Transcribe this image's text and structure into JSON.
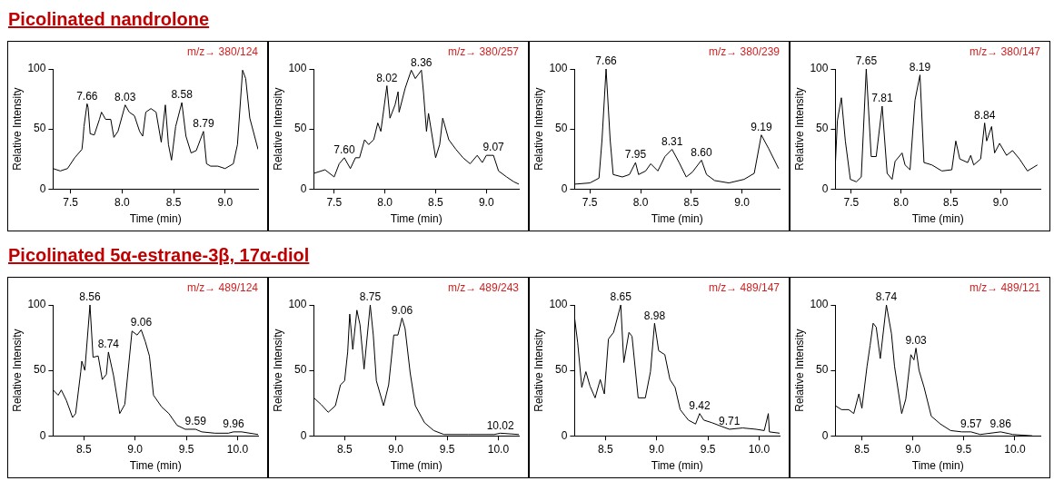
{
  "chart_data": [
    {
      "type": "line",
      "title": "Picolinated nandrolone",
      "xlabel": "Time (min)",
      "ylabel": "Relative Intensity",
      "xlim": [
        7.33,
        9.32
      ],
      "ylim": [
        0,
        100
      ],
      "xticks": [
        7.5,
        {
          "value": 8,
          "label": "8.0"
        },
        8.5,
        {
          "value": 9,
          "label": "9.0"
        }
      ],
      "yticks": [
        0,
        50,
        100
      ],
      "x": [
        7.33,
        7.4,
        7.47,
        7.54,
        7.61,
        7.62,
        7.63,
        7.66,
        7.67,
        7.69,
        7.73,
        7.78,
        7.8,
        7.84,
        7.89,
        7.92,
        7.96,
        8.03,
        8.07,
        8.12,
        8.17,
        8.2,
        8.23,
        8.28,
        8.33,
        8.38,
        8.42,
        8.45,
        8.48,
        8.52,
        8.58,
        8.62,
        8.67,
        8.72,
        8.79,
        8.82,
        8.86,
        8.93,
        9.0,
        9.08,
        9.12,
        9.17,
        9.2,
        9.24,
        9.32
      ],
      "series": [
        {
          "color": "#000000",
          "values": [
            17,
            15,
            17,
            26,
            33,
            41,
            52,
            71,
            68,
            46,
            45,
            58,
            64,
            58,
            58,
            43,
            48,
            70,
            64,
            61,
            48,
            44,
            64,
            67,
            64,
            39,
            70,
            37,
            24,
            52,
            72,
            44,
            30,
            32,
            48,
            21,
            19,
            19,
            17,
            21,
            37,
            99,
            92,
            59,
            33
          ]
        }
      ],
      "annotations": [
        "m/z→ 380/124",
        {
          "text": "7.66",
          "x": 7.66,
          "y": 71
        },
        {
          "text": "8.03",
          "x": 8.03,
          "y": 70
        },
        {
          "text": "8.58",
          "x": 8.58,
          "y": 72
        },
        {
          "text": "8.79",
          "x": 8.79,
          "y": 48
        }
      ]
    },
    {
      "type": "line",
      "xlabel": "Time (min)",
      "ylabel": "Relative Intensity",
      "xlim": [
        7.3,
        9.32
      ],
      "ylim": [
        0,
        100
      ],
      "xticks": [
        7.5,
        {
          "value": 8,
          "label": "8.0"
        },
        8.5,
        {
          "value": 9,
          "label": "9.0"
        }
      ],
      "yticks": [
        0,
        50,
        100
      ],
      "x": [
        7.3,
        7.41,
        7.5,
        7.55,
        7.6,
        7.66,
        7.71,
        7.75,
        7.8,
        7.84,
        7.89,
        7.93,
        7.96,
        8.02,
        8.05,
        8.1,
        8.13,
        8.14,
        8.2,
        8.26,
        8.3,
        8.36,
        8.38,
        8.41,
        8.43,
        8.5,
        8.54,
        8.57,
        8.63,
        8.7,
        8.77,
        8.84,
        8.91,
        8.96,
        9.0,
        9.07,
        9.12,
        9.2,
        9.27,
        9.32
      ],
      "series": [
        {
          "color": "#000000",
          "values": [
            13,
            16,
            10,
            21,
            26,
            17,
            26,
            26,
            41,
            37,
            41,
            55,
            48,
            86,
            59,
            70,
            81,
            64,
            84,
            99,
            92,
            99,
            81,
            48,
            63,
            26,
            37,
            59,
            41,
            33,
            26,
            21,
            28,
            22,
            28,
            28,
            15,
            10,
            6,
            4
          ]
        }
      ],
      "annotations": [
        "m/z→ 380/257",
        {
          "text": "7.60",
          "x": 7.6,
          "y": 26
        },
        {
          "text": "8.02",
          "x": 8.02,
          "y": 86
        },
        {
          "text": "8.36",
          "x": 8.36,
          "y": 99
        },
        {
          "text": "9.07",
          "x": 9.07,
          "y": 28
        }
      ]
    },
    {
      "type": "line",
      "xlabel": "Time (min)",
      "ylabel": "Relative Intensity",
      "xlim": [
        7.35,
        9.37
      ],
      "ylim": [
        0,
        100
      ],
      "xticks": [
        7.5,
        {
          "value": 8,
          "label": "8.0"
        },
        8.5,
        {
          "value": 9,
          "label": "9.0"
        }
      ],
      "yticks": [
        0,
        50,
        100
      ],
      "x": [
        7.35,
        7.5,
        7.59,
        7.62,
        7.66,
        7.7,
        7.73,
        7.82,
        7.89,
        7.95,
        7.98,
        8.05,
        8.1,
        8.17,
        8.24,
        8.31,
        8.38,
        8.45,
        8.51,
        8.6,
        8.65,
        8.73,
        8.87,
        9.02,
        9.12,
        9.19,
        9.26,
        9.36
      ],
      "series": [
        {
          "color": "#000000",
          "values": [
            4,
            5,
            9,
            41,
            100,
            41,
            12,
            10,
            12,
            22,
            12,
            15,
            21,
            15,
            27,
            33,
            22,
            10,
            14,
            24,
            12,
            7,
            5,
            8,
            13,
            45,
            34,
            17
          ]
        }
      ],
      "annotations": [
        "m/z→ 380/239",
        {
          "text": "7.66",
          "x": 7.66,
          "y": 100
        },
        {
          "text": "7.95",
          "x": 7.95,
          "y": 22
        },
        {
          "text": "8.31",
          "x": 8.31,
          "y": 33
        },
        {
          "text": "8.60",
          "x": 8.6,
          "y": 24
        },
        {
          "text": "9.19",
          "x": 9.19,
          "y": 45
        }
      ]
    },
    {
      "type": "line",
      "xlabel": "Time (min)",
      "ylabel": "Relative Intensity",
      "xlim": [
        7.34,
        9.4
      ],
      "ylim": [
        0,
        100
      ],
      "xticks": [
        7.5,
        {
          "value": 8,
          "label": "8.0"
        },
        8.5,
        {
          "value": 9,
          "label": "9.0"
        }
      ],
      "yticks": [
        0,
        50,
        100
      ],
      "x": [
        7.34,
        7.36,
        7.4,
        7.44,
        7.49,
        7.55,
        7.6,
        7.65,
        7.7,
        7.75,
        7.81,
        7.86,
        7.91,
        7.94,
        8.01,
        8.04,
        8.09,
        8.14,
        8.19,
        8.23,
        8.31,
        8.41,
        8.51,
        8.55,
        8.59,
        8.67,
        8.7,
        8.73,
        8.8,
        8.84,
        8.86,
        8.91,
        8.94,
        8.99,
        9.06,
        9.12,
        9.19,
        9.27,
        9.37
      ],
      "series": [
        {
          "color": "#000000",
          "values": [
            21,
            57,
            76,
            40,
            8,
            6,
            10,
            100,
            27,
            27,
            69,
            13,
            8,
            23,
            30,
            20,
            16,
            74,
            95,
            22,
            20,
            15,
            16,
            40,
            25,
            22,
            28,
            20,
            25,
            55,
            40,
            52,
            30,
            38,
            28,
            32,
            25,
            15,
            20
          ]
        }
      ],
      "annotations": [
        "m/z→ 380/147",
        {
          "text": "7.65",
          "x": 7.65,
          "y": 100
        },
        {
          "text": "7.81",
          "x": 7.81,
          "y": 69
        },
        {
          "text": "8.19",
          "x": 8.19,
          "y": 95
        },
        {
          "text": "8.84",
          "x": 8.84,
          "y": 55
        }
      ]
    },
    {
      "type": "line",
      "title": "Picolinated 5α-estrane-3β, 17α-diol",
      "xlabel": "Time (min)",
      "ylabel": "Relative Intensity",
      "xlim": [
        8.2,
        10.2
      ],
      "ylim": [
        0,
        100
      ],
      "xticks": [
        8.5,
        {
          "value": 9,
          "label": "9.0"
        },
        9.5,
        {
          "value": 10,
          "label": "10.0"
        }
      ],
      "yticks": [
        0,
        50,
        100
      ],
      "x": [
        8.2,
        8.25,
        8.28,
        8.33,
        8.39,
        8.42,
        8.47,
        8.48,
        8.51,
        8.56,
        8.59,
        8.64,
        8.68,
        8.72,
        8.74,
        8.79,
        8.85,
        8.9,
        8.97,
        9.02,
        9.06,
        9.1,
        9.14,
        9.18,
        9.26,
        9.33,
        9.41,
        9.49,
        9.59,
        9.65,
        9.78,
        9.91,
        9.96,
        10.04,
        10.2
      ],
      "series": [
        {
          "color": "#000000",
          "values": [
            35,
            31,
            35,
            27,
            14,
            17,
            49,
            57,
            50,
            100,
            60,
            61,
            43,
            47,
            64,
            46,
            17,
            24,
            80,
            77,
            81,
            72,
            61,
            31,
            22,
            17,
            8,
            5,
            5,
            3,
            2,
            2,
            3,
            3,
            1
          ]
        }
      ],
      "annotations": [
        "m/z→ 489/124",
        {
          "text": "8.56",
          "x": 8.56,
          "y": 100
        },
        {
          "text": "8.74",
          "x": 8.74,
          "y": 64
        },
        {
          "text": "9.06",
          "x": 9.06,
          "y": 81
        },
        {
          "text": "9.59",
          "x": 9.59,
          "y": 5
        },
        {
          "text": "9.96",
          "x": 9.96,
          "y": 3
        }
      ]
    },
    {
      "type": "line",
      "xlabel": "Time (min)",
      "ylabel": "Relative Intensity",
      "xlim": [
        8.2,
        10.2
      ],
      "ylim": [
        0,
        100
      ],
      "xticks": [
        8.5,
        {
          "value": 9,
          "label": "9.0"
        },
        9.5,
        {
          "value": 10,
          "label": "10.0"
        }
      ],
      "yticks": [
        0,
        50,
        100
      ],
      "x": [
        8.2,
        8.27,
        8.34,
        8.41,
        8.46,
        8.5,
        8.53,
        8.55,
        8.58,
        8.62,
        8.65,
        8.69,
        8.75,
        8.78,
        8.81,
        8.88,
        8.93,
        8.98,
        9.02,
        9.06,
        9.09,
        9.14,
        9.19,
        9.28,
        9.37,
        9.47,
        9.71,
        9.96,
        10.02,
        10.2
      ],
      "series": [
        {
          "color": "#000000",
          "values": [
            29,
            24,
            18,
            23,
            39,
            42,
            64,
            93,
            66,
            96,
            85,
            51,
            100,
            77,
            42,
            23,
            39,
            77,
            77,
            90,
            82,
            48,
            23,
            10,
            4,
            1,
            1,
            1,
            2,
            1
          ]
        }
      ],
      "annotations": [
        "m/z→ 489/243",
        {
          "text": "8.75",
          "x": 8.75,
          "y": 100
        },
        {
          "text": "9.06",
          "x": 9.06,
          "y": 90
        },
        {
          "text": "10.02",
          "x": 10.02,
          "y": 2
        }
      ]
    },
    {
      "type": "line",
      "xlabel": "Time (min)",
      "ylabel": "Relative Intensity",
      "xlim": [
        8.2,
        10.2
      ],
      "ylim": [
        0,
        100
      ],
      "xticks": [
        8.5,
        {
          "value": 9,
          "label": "9.0"
        },
        9.5,
        {
          "value": 10,
          "label": "10.0"
        }
      ],
      "yticks": [
        0,
        50,
        100
      ],
      "x": [
        8.2,
        8.23,
        8.27,
        8.31,
        8.35,
        8.4,
        8.45,
        8.49,
        8.53,
        8.58,
        8.65,
        8.68,
        8.73,
        8.76,
        8.82,
        8.89,
        8.94,
        8.98,
        9.02,
        9.08,
        9.13,
        9.18,
        9.23,
        9.28,
        9.31,
        9.38,
        9.42,
        9.46,
        9.54,
        9.64,
        9.71,
        9.84,
        9.97,
        10.05,
        10.09,
        10.1,
        10.2
      ],
      "series": [
        {
          "color": "#000000",
          "values": [
            90,
            71,
            37,
            49,
            38,
            29,
            43,
            32,
            74,
            79,
            100,
            56,
            79,
            76,
            29,
            29,
            49,
            86,
            65,
            62,
            43,
            37,
            20,
            15,
            12,
            9,
            17,
            12,
            10,
            7,
            5,
            6,
            5,
            4,
            17,
            3,
            2
          ]
        }
      ],
      "annotations": [
        "m/z→ 489/147",
        {
          "text": "8.65",
          "x": 8.65,
          "y": 100
        },
        {
          "text": "8.98",
          "x": 8.98,
          "y": 86
        },
        {
          "text": "9.42",
          "x": 9.42,
          "y": 17
        },
        {
          "text": "9.71",
          "x": 9.71,
          "y": 5
        }
      ]
    },
    {
      "type": "line",
      "xlabel": "Time (min)",
      "ylabel": "Relative Intensity",
      "xlim": [
        8.24,
        10.25
      ],
      "ylim": [
        0,
        100
      ],
      "xticks": [
        8.5,
        {
          "value": 9,
          "label": "9.0"
        },
        9.5,
        {
          "value": 10,
          "label": "10.0"
        }
      ],
      "yticks": [
        0,
        50,
        100
      ],
      "x": [
        8.24,
        8.3,
        8.37,
        8.42,
        8.47,
        8.5,
        8.55,
        8.58,
        8.61,
        8.64,
        8.68,
        8.74,
        8.79,
        8.82,
        8.89,
        8.93,
        8.98,
        9.01,
        9.03,
        9.06,
        9.11,
        9.18,
        9.27,
        9.37,
        9.48,
        9.57,
        9.66,
        9.86,
        9.98,
        10.17
      ],
      "series": [
        {
          "color": "#000000",
          "values": [
            23,
            20,
            20,
            17,
            32,
            21,
            53,
            69,
            86,
            83,
            59,
            100,
            78,
            53,
            17,
            28,
            62,
            58,
            67,
            50,
            37,
            15,
            9,
            4,
            3,
            3,
            1,
            3,
            1,
            0
          ]
        }
      ],
      "annotations": [
        "m/z→ 489/121",
        {
          "text": "8.74",
          "x": 8.74,
          "y": 100
        },
        {
          "text": "9.03",
          "x": 9.03,
          "y": 67
        },
        {
          "text": "9.57",
          "x": 9.57,
          "y": 3
        },
        {
          "text": "9.86",
          "x": 9.86,
          "y": 3
        }
      ]
    }
  ]
}
